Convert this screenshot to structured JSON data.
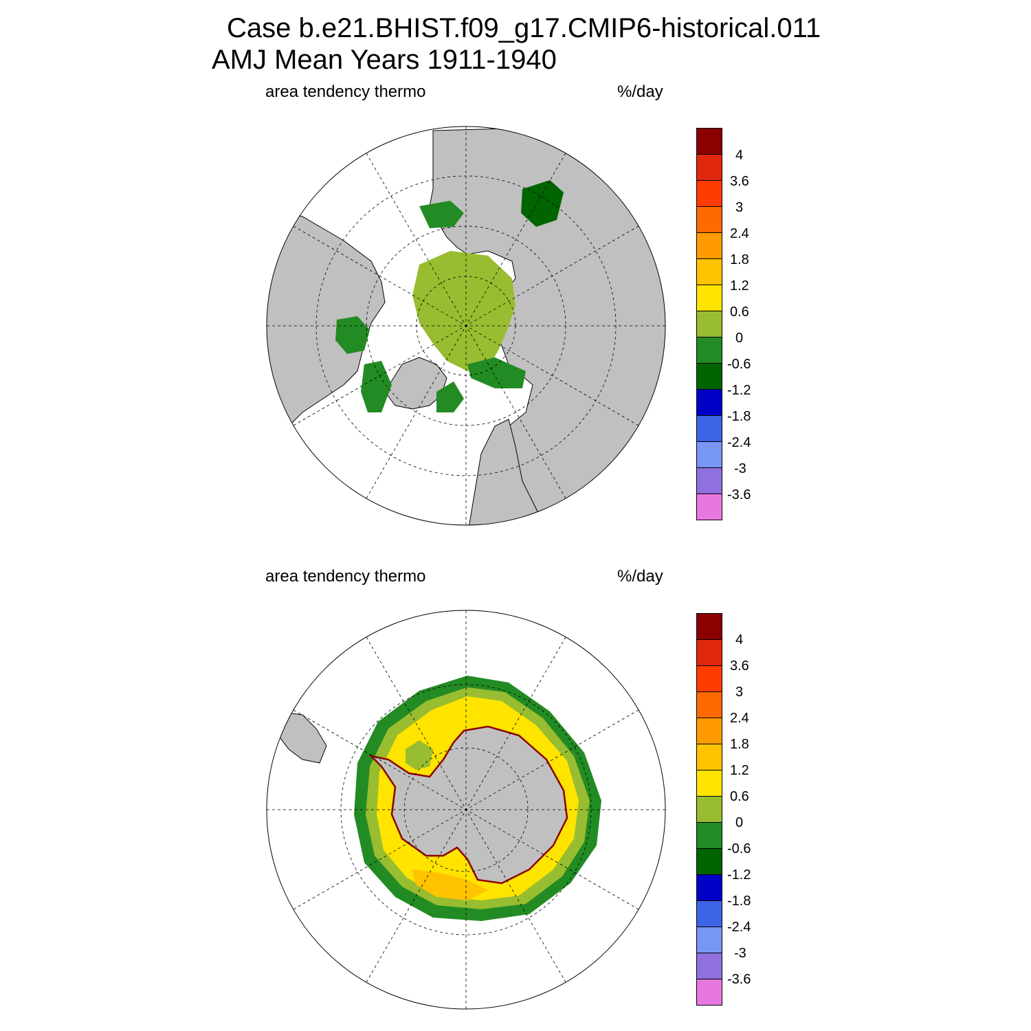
{
  "title": {
    "line1": "Case b.e21.BHIST.f09_g17.CMIP6-historical.011",
    "line2": "AMJ Mean   Years 1911-1940"
  },
  "panels": [
    {
      "id": "north",
      "hemisphere": "Northern Hemisphere",
      "left_label": "area tendency thermo",
      "right_label": "%/day"
    },
    {
      "id": "south",
      "hemisphere": "Southern Hemisphere",
      "left_label": "area tendency thermo",
      "right_label": "%/day"
    }
  ],
  "colorbar": {
    "labels": [
      "4",
      "3.6",
      "3",
      "2.4",
      "1.8",
      "1.2",
      "0.6",
      "0",
      "-0.6",
      "-1.2",
      "-1.8",
      "-2.4",
      "-3",
      "-3.6"
    ],
    "colors": [
      "#8b0000",
      "#e0280f",
      "#ff3c00",
      "#ff6a00",
      "#ff9b00",
      "#ffc300",
      "#ffe400",
      "#98bd30",
      "#238b23",
      "#006400",
      "#0000c8",
      "#3c64e6",
      "#7896f5",
      "#9070de",
      "#e878e0"
    ]
  },
  "colors": {
    "land": "#c0c0c0",
    "ocean_no_ice": "#ffffff",
    "coast": "#000000"
  }
}
